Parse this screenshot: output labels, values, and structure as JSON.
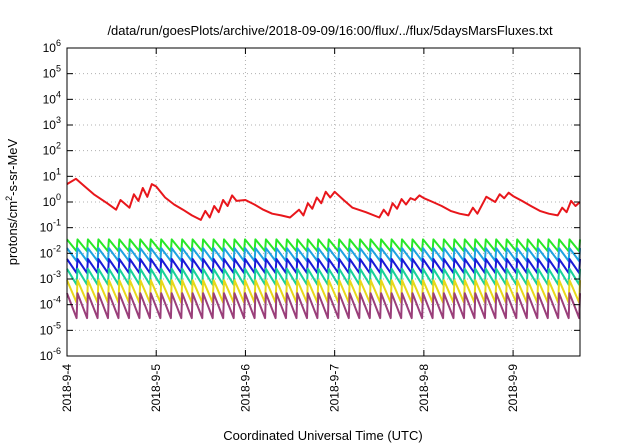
{
  "chart_data": {
    "type": "line",
    "title": "/data/run/goesPlots/archive/2018-09-09/16:00/flux/../flux/5daysMarsFluxes.txt",
    "xlabel": "Coordinated Universal Time (UTC)",
    "ylabel_parts": [
      "protons/cm",
      "2",
      "-s-sr-MeV"
    ],
    "xlim_days": [
      0,
      5.75
    ],
    "x_ticks": [
      {
        "label": "2018-9-4",
        "day": 0
      },
      {
        "label": "2018-9-5",
        "day": 1
      },
      {
        "label": "2018-9-6",
        "day": 2
      },
      {
        "label": "2018-9-7",
        "day": 3
      },
      {
        "label": "2018-9-8",
        "day": 4
      },
      {
        "label": "2018-9-9",
        "day": 5
      }
    ],
    "y_scale": "log",
    "ylim": [
      1e-06,
      1000000.0
    ],
    "y_ticks": [
      {
        "base": "10",
        "exp": "6",
        "value": 1000000.0
      },
      {
        "base": "10",
        "exp": "5",
        "value": 100000.0
      },
      {
        "base": "10",
        "exp": "4",
        "value": 10000.0
      },
      {
        "base": "10",
        "exp": "3",
        "value": 1000.0
      },
      {
        "base": "10",
        "exp": "2",
        "value": 100.0
      },
      {
        "base": "10",
        "exp": "1",
        "value": 10.0
      },
      {
        "base": "10",
        "exp": "0",
        "value": 1
      },
      {
        "base": "10",
        "exp": "-1",
        "value": 0.1
      },
      {
        "base": "10",
        "exp": "-2",
        "value": 0.01
      },
      {
        "base": "10",
        "exp": "-3",
        "value": 0.001
      },
      {
        "base": "10",
        "exp": "-4",
        "value": 0.0001
      },
      {
        "base": "10",
        "exp": "-5",
        "value": 1e-05
      },
      {
        "base": "10",
        "exp": "-6",
        "value": 1e-06
      }
    ],
    "grid": true,
    "legend": "none",
    "series": [
      {
        "color": "#e8161b",
        "x": [
          0,
          0.1,
          0.2,
          0.3,
          0.45,
          0.55,
          0.6,
          0.7,
          0.75,
          0.8,
          0.85,
          0.9,
          0.95,
          1.0,
          1.1,
          1.2,
          1.3,
          1.4,
          1.5,
          1.55,
          1.6,
          1.65,
          1.7,
          1.75,
          1.8,
          1.85,
          1.9,
          2.0,
          2.1,
          2.2,
          2.3,
          2.4,
          2.5,
          2.6,
          2.65,
          2.7,
          2.75,
          2.8,
          2.85,
          2.9,
          2.95,
          3.0,
          3.1,
          3.2,
          3.35,
          3.5,
          3.55,
          3.6,
          3.65,
          3.7,
          3.75,
          3.8,
          3.85,
          3.9,
          3.95,
          4.0,
          4.1,
          4.2,
          4.3,
          4.4,
          4.5,
          4.55,
          4.6,
          4.7,
          4.8,
          4.85,
          4.9,
          4.95,
          5.0,
          5.1,
          5.2,
          5.3,
          5.4,
          5.5,
          5.55,
          5.6,
          5.65,
          5.7,
          5.75
        ],
        "values": [
          5,
          8,
          4,
          2,
          0.9,
          0.5,
          1.2,
          0.6,
          2,
          1.1,
          3.5,
          1.6,
          5,
          4,
          1.5,
          0.8,
          0.5,
          0.3,
          0.2,
          0.45,
          0.25,
          0.7,
          0.4,
          1.2,
          0.7,
          1.8,
          1.1,
          1.2,
          0.8,
          0.5,
          0.35,
          0.3,
          0.25,
          0.5,
          0.3,
          0.9,
          0.55,
          1.5,
          0.9,
          2.5,
          1.5,
          2.5,
          1.2,
          0.6,
          0.4,
          0.25,
          0.5,
          0.3,
          0.9,
          0.55,
          1.3,
          0.8,
          1.4,
          1.2,
          1.8,
          1.4,
          1.0,
          0.7,
          0.45,
          0.35,
          0.3,
          0.6,
          0.35,
          1.6,
          1.0,
          2.0,
          1.4,
          2.3,
          1.7,
          1.1,
          0.7,
          0.45,
          0.35,
          0.3,
          0.6,
          0.4,
          1.1,
          0.7,
          1.0
        ]
      },
      {
        "color": "#27e827",
        "teeth": 49,
        "peak": 0.035,
        "trough": 0.012
      },
      {
        "color": "#1fa3e0",
        "teeth": 49,
        "peak": 0.016,
        "trough": 0.005
      },
      {
        "color": "#1a1ad8",
        "teeth": 49,
        "peak": 0.006,
        "trough": 0.0017
      },
      {
        "color": "#19d19a",
        "teeth": 49,
        "peak": 0.0025,
        "trough": 0.0006
      },
      {
        "color": "#e8d81a",
        "teeth": 49,
        "peak": 0.0009,
        "trough": 0.00012
      },
      {
        "color": "#9a3f7a",
        "teeth": 49,
        "peak": 0.00028,
        "trough": 3e-05
      }
    ]
  }
}
